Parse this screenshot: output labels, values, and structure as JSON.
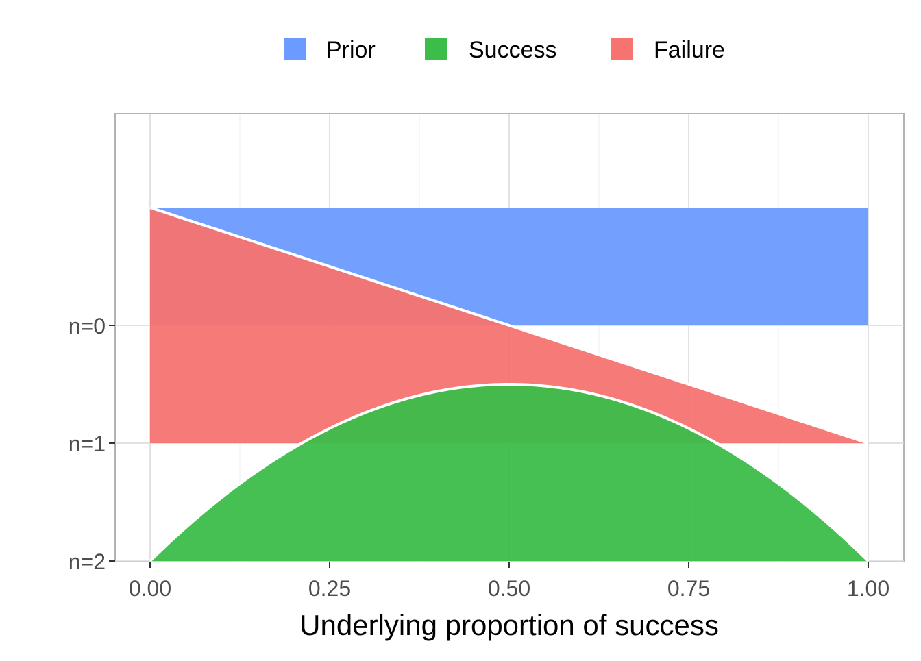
{
  "chart_data": {
    "type": "area",
    "title": "",
    "xlabel": "Underlying proportion of success",
    "ylabel": "",
    "xlim": [
      -0.1,
      1.1
    ],
    "ylim": [
      2,
      0
    ],
    "x_ticks": [
      "0.00",
      "0.25",
      "0.50",
      "0.75",
      "1.00"
    ],
    "x_tick_values": [
      0,
      0.25,
      0.5,
      0.75,
      1
    ],
    "y_ticks": [
      "n=0",
      "n=1",
      "n=2"
    ],
    "y_tick_values": [
      0,
      1,
      2
    ],
    "grid": true,
    "legend_position": "top",
    "legend": [
      {
        "label": "Prior",
        "color": "#6b9bff"
      },
      {
        "label": "Success",
        "color": "#3cbd4a"
      },
      {
        "label": "Failure",
        "color": "#f67370"
      }
    ],
    "series": [
      {
        "name": "Prior",
        "baseline": 0,
        "density": "1",
        "x": [
          0,
          1
        ],
        "height": [
          1,
          1
        ]
      },
      {
        "name": "Failure",
        "baseline": 1,
        "density": "2(1-p)",
        "x": [
          0,
          0.5,
          1
        ],
        "height": [
          2,
          1,
          0
        ]
      },
      {
        "name": "Success",
        "baseline": 2,
        "density": "6p(1-p)",
        "x": [
          0,
          0.25,
          0.5,
          0.75,
          1
        ],
        "height": [
          0,
          1.125,
          1.5,
          1.125,
          0
        ]
      }
    ]
  }
}
